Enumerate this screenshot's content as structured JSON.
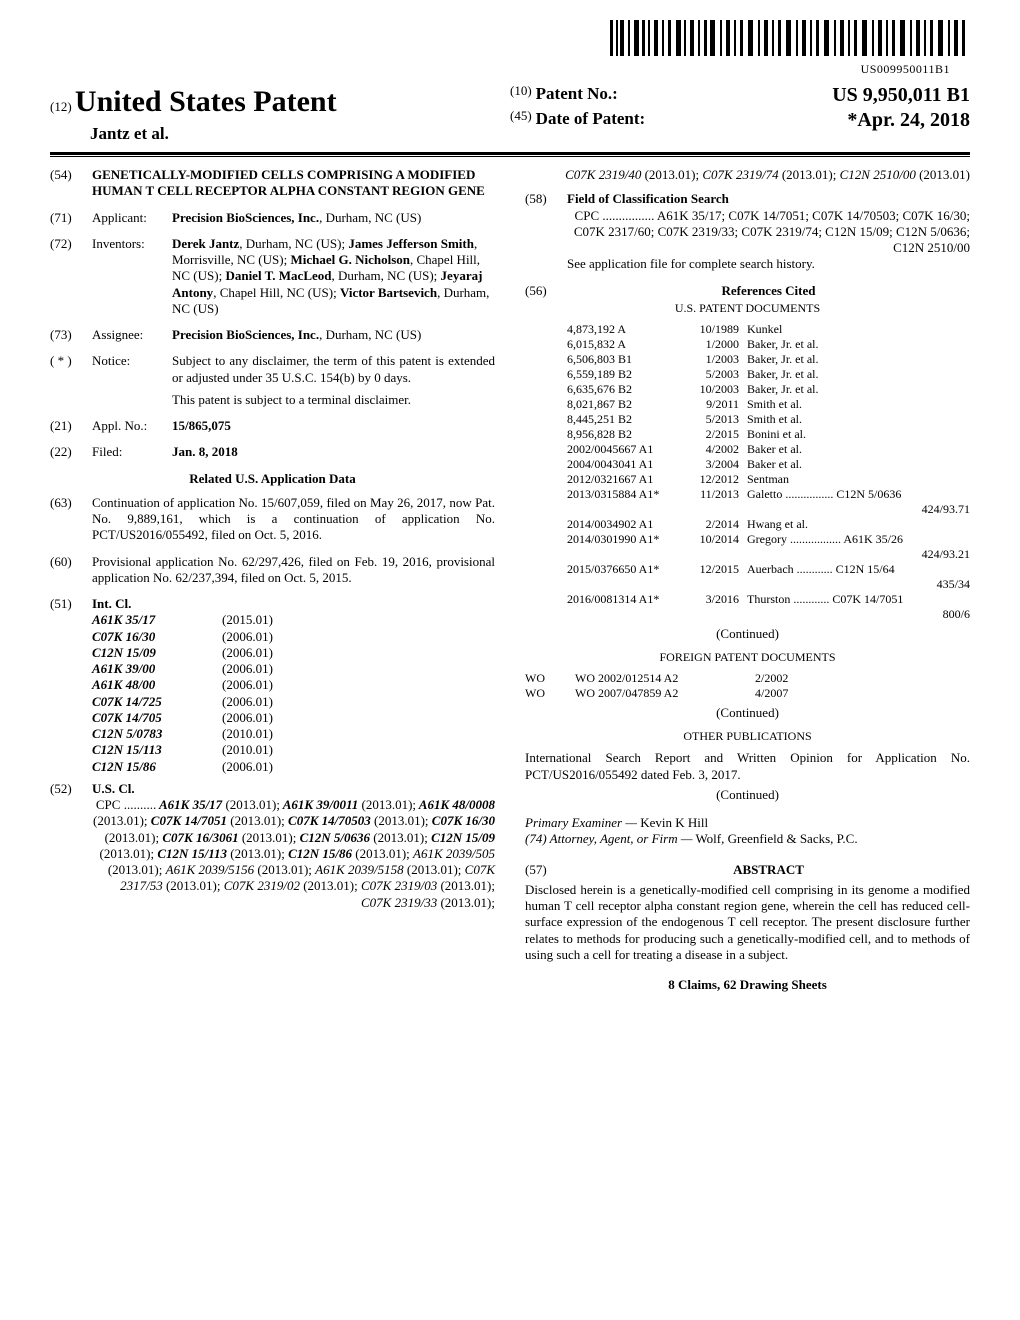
{
  "barcode": {
    "text": "US009950011B1"
  },
  "header": {
    "code12": "(12)",
    "title": "United States Patent",
    "authors": "Jantz et al.",
    "patent_no_code": "(10)",
    "patent_no_label": "Patent No.:",
    "patent_no_value": "US 9,950,011 B1",
    "date_code": "(45)",
    "date_label": "Date of Patent:",
    "date_value": "*Apr. 24, 2018"
  },
  "left": {
    "f54": {
      "code": "(54)",
      "text": "GENETICALLY-MODIFIED CELLS COMPRISING A MODIFIED HUMAN T CELL RECEPTOR ALPHA CONSTANT REGION GENE"
    },
    "f71": {
      "code": "(71)",
      "label": "Applicant:",
      "text": "Precision BioSciences, Inc., Durham, NC (US)"
    },
    "f72": {
      "code": "(72)",
      "label": "Inventors:",
      "text": "Derek Jantz, Durham, NC (US); James Jefferson Smith, Morrisville, NC (US); Michael G. Nicholson, Chapel Hill, NC (US); Daniel T. MacLeod, Durham, NC (US); Jeyaraj Antony, Chapel Hill, NC (US); Victor Bartsevich, Durham, NC (US)"
    },
    "f73": {
      "code": "(73)",
      "label": "Assignee:",
      "text": "Precision BioSciences, Inc., Durham, NC (US)"
    },
    "notice": {
      "code": "( * )",
      "label": "Notice:",
      "text1": "Subject to any disclaimer, the term of this patent is extended or adjusted under 35 U.S.C. 154(b) by 0 days.",
      "text2": "This patent is subject to a terminal disclaimer."
    },
    "f21": {
      "code": "(21)",
      "label": "Appl. No.:",
      "text": "15/865,075"
    },
    "f22": {
      "code": "(22)",
      "label": "Filed:",
      "text": "Jan. 8, 2018"
    },
    "related_head": "Related U.S. Application Data",
    "f63": {
      "code": "(63)",
      "text": "Continuation of application No. 15/607,059, filed on May 26, 2017, now Pat. No. 9,889,161, which is a continuation of application No. PCT/US2016/055492, filed on Oct. 5, 2016."
    },
    "f60": {
      "code": "(60)",
      "text": "Provisional application No. 62/297,426, filed on Feb. 19, 2016, provisional application No. 62/237,394, filed on Oct. 5, 2015."
    },
    "f51": {
      "code": "(51)",
      "label": "Int. Cl.",
      "items": [
        {
          "c": "A61K 35/17",
          "y": "(2015.01)"
        },
        {
          "c": "C07K 16/30",
          "y": "(2006.01)"
        },
        {
          "c": "C12N 15/09",
          "y": "(2006.01)"
        },
        {
          "c": "A61K 39/00",
          "y": "(2006.01)"
        },
        {
          "c": "A61K 48/00",
          "y": "(2006.01)"
        },
        {
          "c": "C07K 14/725",
          "y": "(2006.01)"
        },
        {
          "c": "C07K 14/705",
          "y": "(2006.01)"
        },
        {
          "c": "C12N 5/0783",
          "y": "(2010.01)"
        },
        {
          "c": "C12N 15/113",
          "y": "(2010.01)"
        },
        {
          "c": "C12N 15/86",
          "y": "(2006.01)"
        }
      ]
    },
    "f52": {
      "code": "(52)",
      "label": "U.S. Cl.",
      "text": "CPC .......... A61K 35/17 (2013.01); A61K 39/0011 (2013.01); A61K 48/0008 (2013.01); C07K 14/7051 (2013.01); C07K 14/70503 (2013.01); C07K 16/30 (2013.01); C07K 16/3061 (2013.01); C12N 5/0636 (2013.01); C12N 15/09 (2013.01); C12N 15/113 (2013.01); C12N 15/86 (2013.01); A61K 2039/505 (2013.01); A61K 2039/5156 (2013.01); A61K 2039/5158 (2013.01); C07K 2317/53 (2013.01); C07K 2319/02 (2013.01); C07K 2319/03 (2013.01); C07K 2319/33 (2013.01);"
    }
  },
  "right": {
    "f52_cont": "C07K 2319/40 (2013.01); C07K 2319/74 (2013.01); C12N 2510/00 (2013.01)",
    "f58": {
      "code": "(58)",
      "label": "Field of Classification Search",
      "text": "CPC ................ A61K 35/17; C07K 14/7051; C07K 14/70503; C07K 16/30; C07K 2317/60; C07K 2319/33; C07K 2319/74; C12N 15/09; C12N 5/0636; C12N 2510/00",
      "note": "See application file for complete search history."
    },
    "f56": {
      "code": "(56)",
      "label": "References Cited"
    },
    "us_docs_head": "U.S. PATENT DOCUMENTS",
    "us_docs": [
      {
        "n": "4,873,192 A",
        "d": "10/1989",
        "a": "Kunkel"
      },
      {
        "n": "6,015,832 A",
        "d": "1/2000",
        "a": "Baker, Jr. et al."
      },
      {
        "n": "6,506,803 B1",
        "d": "1/2003",
        "a": "Baker, Jr. et al."
      },
      {
        "n": "6,559,189 B2",
        "d": "5/2003",
        "a": "Baker, Jr. et al."
      },
      {
        "n": "6,635,676 B2",
        "d": "10/2003",
        "a": "Baker, Jr. et al."
      },
      {
        "n": "8,021,867 B2",
        "d": "9/2011",
        "a": "Smith et al."
      },
      {
        "n": "8,445,251 B2",
        "d": "5/2013",
        "a": "Smith et al."
      },
      {
        "n": "8,956,828 B2",
        "d": "2/2015",
        "a": "Bonini et al."
      },
      {
        "n": "2002/0045667 A1",
        "d": "4/2002",
        "a": "Baker et al."
      },
      {
        "n": "2004/0043041 A1",
        "d": "3/2004",
        "a": "Baker et al."
      },
      {
        "n": "2012/0321667 A1",
        "d": "12/2012",
        "a": "Sentman"
      },
      {
        "n": "2013/0315884 A1*",
        "d": "11/2013",
        "a": "Galetto ................ C12N 5/0636",
        "e": "424/93.71"
      },
      {
        "n": "2014/0034902 A1",
        "d": "2/2014",
        "a": "Hwang et al."
      },
      {
        "n": "2014/0301990 A1*",
        "d": "10/2014",
        "a": "Gregory ................. A61K 35/26",
        "e": "424/93.21"
      },
      {
        "n": "2015/0376650 A1*",
        "d": "12/2015",
        "a": "Auerbach ............ C12N 15/64",
        "e": "435/34"
      },
      {
        "n": "2016/0081314 A1*",
        "d": "3/2016",
        "a": "Thurston ............ C07K 14/7051",
        "e": "800/6"
      }
    ],
    "continued1": "(Continued)",
    "foreign_head": "FOREIGN PATENT DOCUMENTS",
    "foreign": [
      {
        "cc": "WO",
        "n": "WO 2002/012514 A2",
        "d": "2/2002"
      },
      {
        "cc": "WO",
        "n": "WO 2007/047859 A2",
        "d": "4/2007"
      }
    ],
    "continued2": "(Continued)",
    "other_head": "OTHER PUBLICATIONS",
    "other_text": "International Search Report and Written Opinion for Application No. PCT/US2016/055492 dated Feb. 3, 2017.",
    "continued3": "(Continued)",
    "examiner_label": "Primary Examiner —",
    "examiner": "Kevin K Hill",
    "f74_label": "(74) Attorney, Agent, or Firm —",
    "f74_text": "Wolf, Greenfield & Sacks, P.C.",
    "abstract_code": "(57)",
    "abstract_head": "ABSTRACT",
    "abstract_text": "Disclosed herein is a genetically-modified cell comprising in its genome a modified human T cell receptor alpha constant region gene, wherein the cell has reduced cell-surface expression of the endogenous T cell receptor. The present disclosure further relates to methods for producing such a genetically-modified cell, and to methods of using such a cell for treating a disease in a subject.",
    "claims": "8 Claims, 62 Drawing Sheets"
  }
}
